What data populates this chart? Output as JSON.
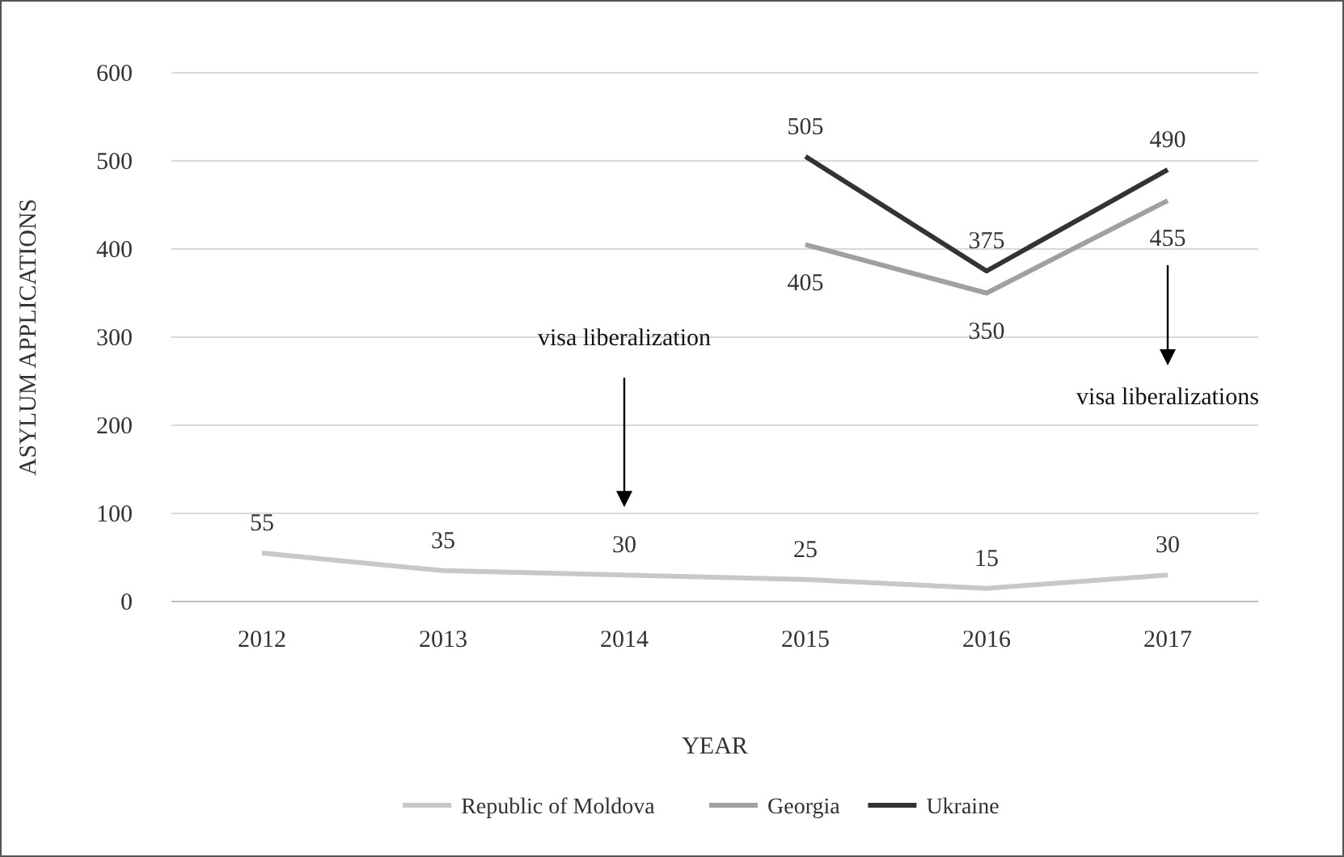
{
  "chart_data": {
    "type": "line",
    "xlabel": "YEAR",
    "ylabel": "ASYLUM APPLICATIONS",
    "categories": [
      "2012",
      "2013",
      "2014",
      "2015",
      "2016",
      "2017"
    ],
    "series": [
      {
        "name": "Republic of Moldova",
        "color": "#c8c8c8",
        "values": [
          55,
          35,
          30,
          25,
          15,
          30
        ]
      },
      {
        "name": "Georgia",
        "color": "#a0a0a0",
        "values": [
          null,
          null,
          null,
          405,
          350,
          455
        ]
      },
      {
        "name": "Ukraine",
        "color": "#333333",
        "values": [
          null,
          null,
          null,
          505,
          375,
          490
        ]
      }
    ],
    "ylim": [
      0,
      600
    ],
    "yticks": [
      0,
      100,
      200,
      300,
      400,
      500,
      600
    ],
    "grid": "y",
    "legend": "bottom",
    "data_labels": true,
    "marker": "none",
    "line_style": "solid",
    "ref_lines": [
      {
        "axis": "x",
        "value": "2014",
        "label": "visa liberalization"
      },
      {
        "axis": "x",
        "value": "2017",
        "label": "visa liberalizations"
      }
    ]
  }
}
